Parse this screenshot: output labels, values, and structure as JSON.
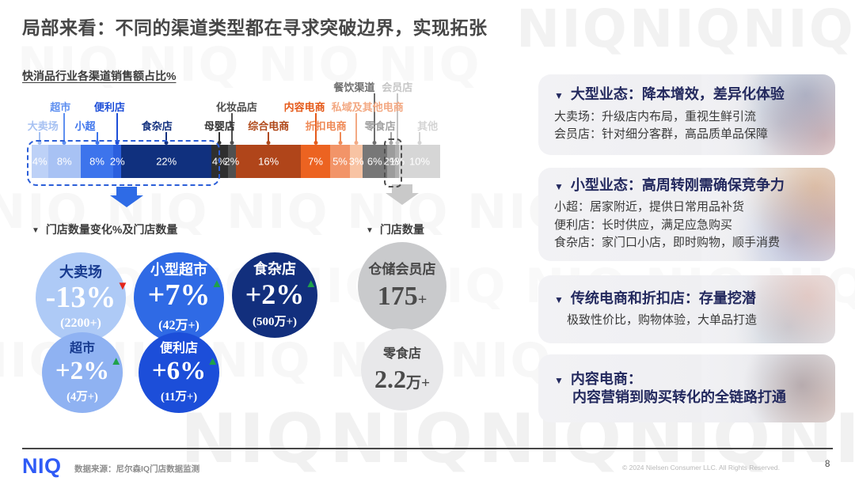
{
  "slide": {
    "title": "局部来看：不同的渠道类型都在寻求突破边界，实现拓张",
    "watermark": "NIQ"
  },
  "ui": {
    "marker": "▼"
  },
  "chart_data": {
    "type": "bar",
    "stacked": true,
    "orientation": "horizontal",
    "title": "快消品行业各渠道销售额占比%",
    "unit": "%",
    "categories": [
      "大卖场",
      "超市",
      "小超",
      "便利店",
      "食杂店",
      "母婴店",
      "化妆品店",
      "综合电商",
      "内容电商",
      "折扣电商",
      "私域及其他电商",
      "餐饮渠道",
      "零食店",
      "会员店",
      "其他"
    ],
    "values": [
      4,
      8,
      8,
      2,
      22,
      4,
      2,
      16,
      7,
      5,
      3,
      6,
      2,
      1,
      10
    ],
    "segment_colors": [
      "#BDD1F7",
      "#A8C2F4",
      "#3D74EC",
      "#2B5FDE",
      "#10307E",
      "#2F2F2F",
      "#505050",
      "#B0451A",
      "#EC6321",
      "#F29468",
      "#F8C3A3",
      "#777777",
      "#9C9C9C",
      "#AFAFAF",
      "#D6D6D6"
    ],
    "label_colors": [
      "#A6C1F2",
      "#5E8FF0",
      "#3D74EC",
      "#1D4ED8",
      "#12307E",
      "#333333",
      "#4D4D4D",
      "#B0491B",
      "#E55A1A",
      "#EF8A57",
      "#F3A983",
      "#6F6F6F",
      "#A3A3A3",
      "#C6C6C6",
      "#D4D4D4"
    ],
    "legend_position": "above-bar",
    "xlim": [
      0,
      100
    ]
  },
  "store_change": {
    "heading": "门店数量变化%及门店数量",
    "bubbles": [
      {
        "name": "大卖场",
        "value": "-13%",
        "count": "(2200+)",
        "trend": "down",
        "color": "#AECAF6",
        "name_color": "#173A8F",
        "value_color": "#FFFFFF"
      },
      {
        "name": "小型超市",
        "value": "+7%",
        "count": "(42万+)",
        "trend": "up",
        "color": "#2F6AE5",
        "name_color": "#FFFFFF",
        "value_color": "#FFFFFF"
      },
      {
        "name": "食杂店",
        "value": "+2%",
        "count": "(500万+)",
        "trend": "up",
        "color": "#122F7D",
        "name_color": "#FFFFFF",
        "value_color": "#FFFFFF"
      },
      {
        "name": "超市",
        "value": "+2%",
        "count": "(4万+)",
        "trend": "up",
        "color": "#8FB2F2",
        "name_color": "#173A8F",
        "value_color": "#FFFFFF"
      },
      {
        "name": "便利店",
        "value": "+6%",
        "count": "(11万+)",
        "trend": "up",
        "color": "#1C4ED9",
        "name_color": "#FFFFFF",
        "value_color": "#FFFFFF"
      }
    ],
    "trend_up_color": "#1FA14A",
    "trend_down_color": "#E3261A"
  },
  "store_count": {
    "heading": "门店数量",
    "bubbles": [
      {
        "name": "仓储会员店",
        "value": "175",
        "suffix": "+",
        "color": "#C9CACC",
        "name_color": "#474747",
        "value_color": "#4B4B4B"
      },
      {
        "name": "零食店",
        "value": "2.2",
        "suffix": "万+",
        "color": "#E8E8EA",
        "name_color": "#474747",
        "value_color": "#4B4B4B"
      }
    ]
  },
  "insights": [
    {
      "title_lines": [
        "大型业态：降本增效，差异化体验"
      ],
      "lines": [
        "大卖场：升级店内布局，重视生鲜引流",
        "会员店：针对细分客群，高品质单品保障"
      ]
    },
    {
      "title_lines": [
        "小型业态：高周转刚需确保竞争力"
      ],
      "lines": [
        "小超：居家附近，提供日常用品补货",
        "便利店：长时供应，满足应急购买",
        "食杂店：家门口小店，即时购物，顺手消费"
      ]
    },
    {
      "title_lines": [
        "传统电商和折扣店：存量挖潜"
      ],
      "lines": [
        "极致性价比，购物体验，大单品打造"
      ]
    },
    {
      "title_lines": [
        "内容电商：",
        "内容营销到购买转化的全链路打通"
      ],
      "lines": []
    }
  ],
  "footer": {
    "logo": "NIQ",
    "source": "数据来源：尼尔森IQ门店数据监测",
    "copyright": "© 2024 Nielsen Consumer LLC. All Rights Reserved.",
    "page": "8"
  }
}
